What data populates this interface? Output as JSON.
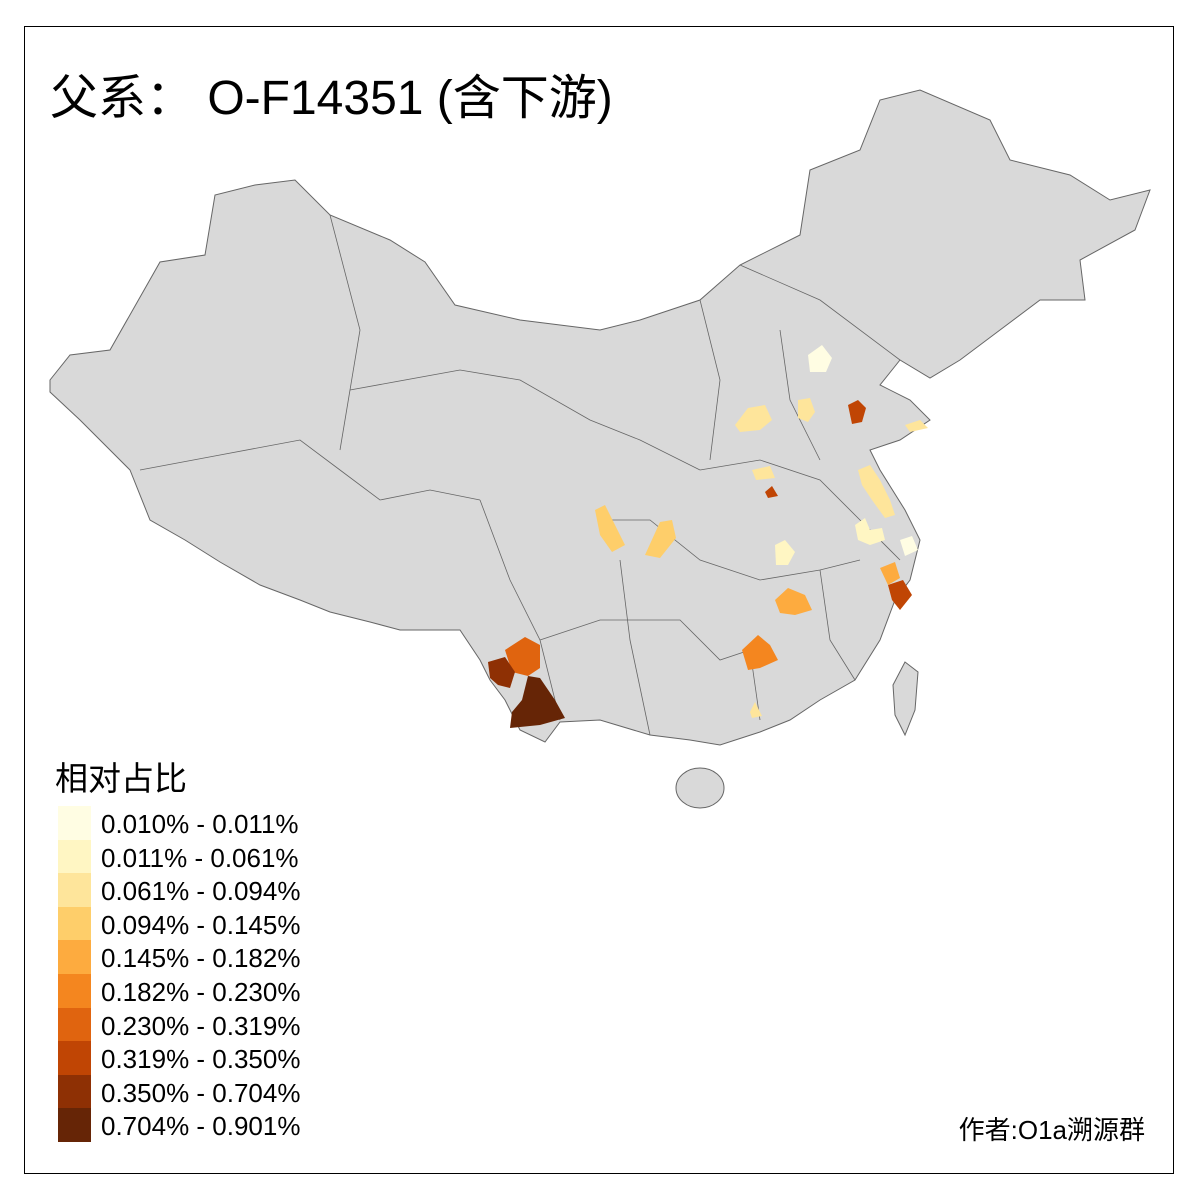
{
  "title": "父系： O-F14351 (含下游)",
  "legend": {
    "title": "相对占比",
    "items": [
      {
        "label": "0.010% - 0.011%",
        "color": "#fffde3"
      },
      {
        "label": "0.011% - 0.061%",
        "color": "#fff6c3"
      },
      {
        "label": "0.061% - 0.094%",
        "color": "#fee59b"
      },
      {
        "label": "0.094% - 0.145%",
        "color": "#fece6a"
      },
      {
        "label": "0.145% - 0.182%",
        "color": "#fdab3f"
      },
      {
        "label": "0.182% - 0.230%",
        "color": "#f4861f"
      },
      {
        "label": "0.230% - 0.319%",
        "color": "#e0640f"
      },
      {
        "label": "0.319% - 0.350%",
        "color": "#c04504"
      },
      {
        "label": "0.350% - 0.704%",
        "color": "#8e3004"
      },
      {
        "label": "0.704% - 0.901%",
        "color": "#662506"
      }
    ]
  },
  "colors": {
    "base_fill": "#d9d9d9",
    "border": "#666666"
  },
  "author": "作者:O1a溯源群"
}
